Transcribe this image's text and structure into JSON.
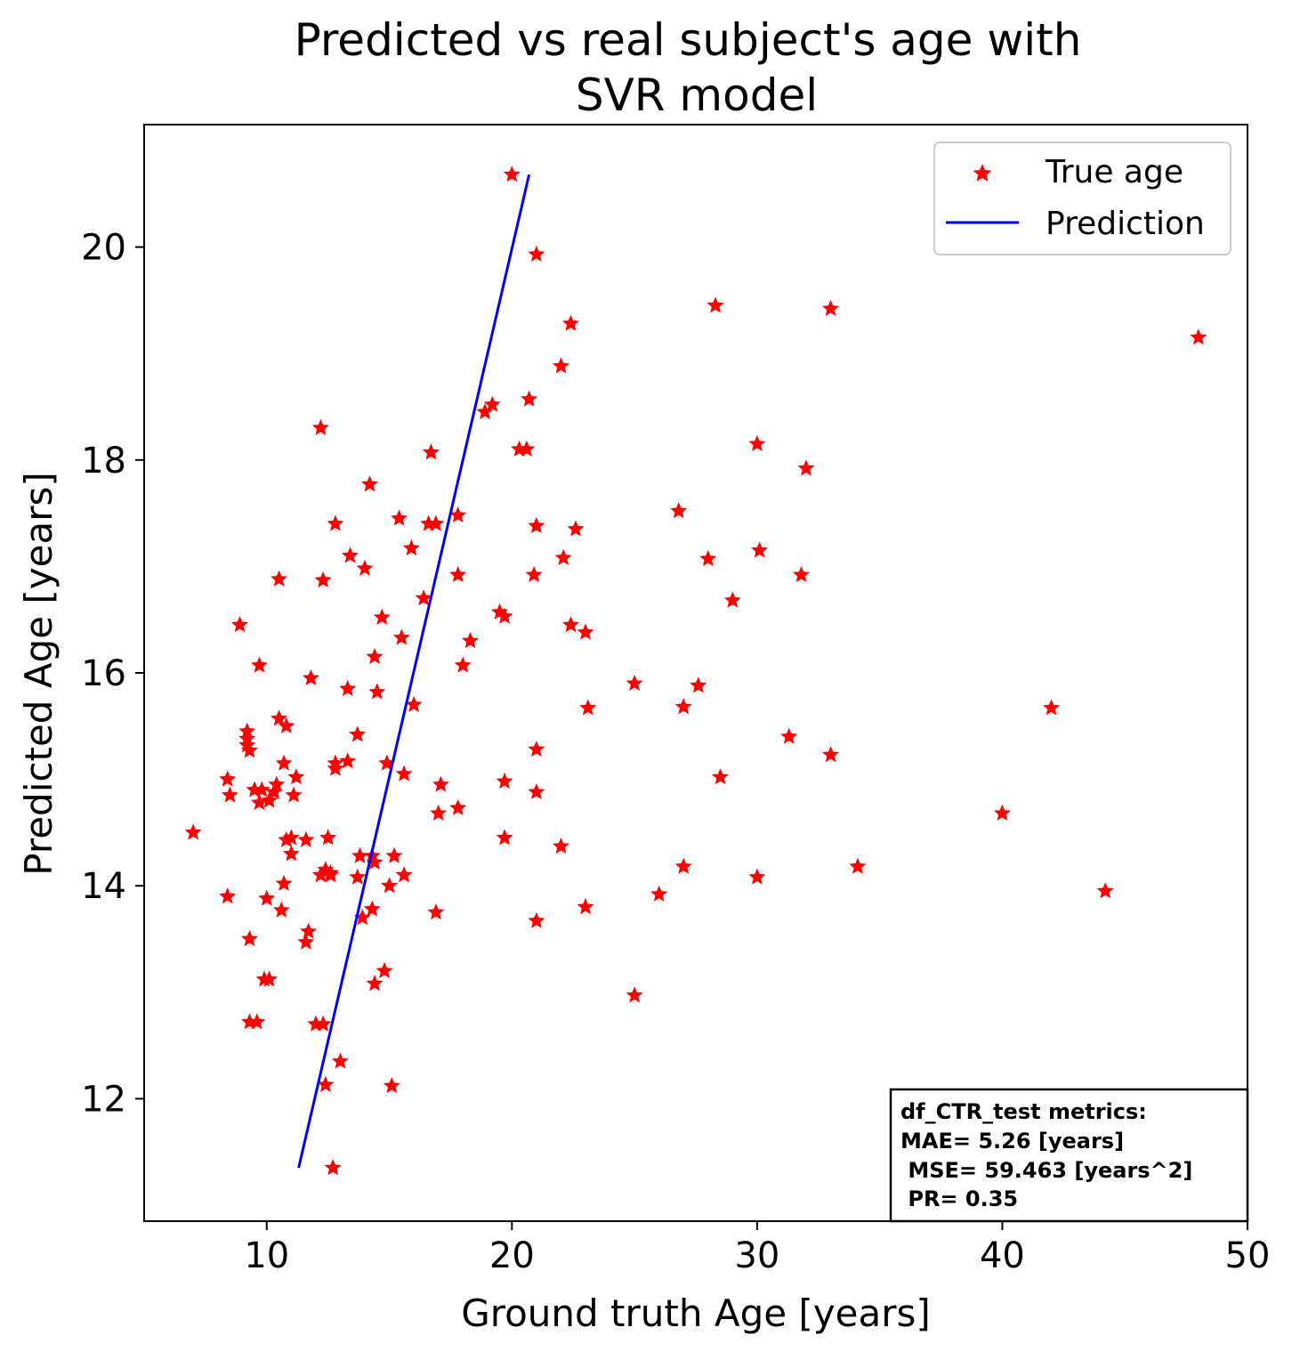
{
  "chart_data": {
    "type": "scatter",
    "title": [
      "Predicted vs real subject's age with",
      "SVR model"
    ],
    "xlabel": "Ground truth Age [years]",
    "ylabel": "Predicted Age [years]",
    "xlim": [
      5,
      50
    ],
    "ylim": [
      10.85,
      21.15
    ],
    "xticks": [
      10,
      20,
      30,
      40,
      50
    ],
    "yticks": [
      12,
      14,
      16,
      18,
      20
    ],
    "grid": false,
    "legend": {
      "placement": "top-right",
      "entries": [
        "True age",
        "Prediction"
      ]
    },
    "colors": {
      "points": "#ff0000",
      "line": "#0000ff"
    },
    "series": [
      {
        "name": "True age",
        "kind": "scatter",
        "marker": "star",
        "points": [
          [
            7.0,
            14.5
          ],
          [
            8.4,
            15.0
          ],
          [
            8.5,
            14.85
          ],
          [
            8.4,
            13.9
          ],
          [
            8.9,
            16.45
          ],
          [
            9.2,
            15.45
          ],
          [
            9.2,
            15.38
          ],
          [
            9.2,
            15.32
          ],
          [
            9.3,
            15.27
          ],
          [
            9.5,
            14.9
          ],
          [
            9.3,
            13.5
          ],
          [
            9.3,
            12.72
          ],
          [
            9.6,
            12.72
          ],
          [
            9.7,
            16.07
          ],
          [
            9.8,
            14.9
          ],
          [
            9.7,
            14.78
          ],
          [
            9.9,
            13.12
          ],
          [
            10.1,
            13.12
          ],
          [
            10.0,
            13.88
          ],
          [
            10.1,
            14.8
          ],
          [
            10.3,
            14.88
          ],
          [
            10.4,
            14.95
          ],
          [
            10.5,
            16.88
          ],
          [
            10.5,
            15.57
          ],
          [
            10.8,
            15.5
          ],
          [
            10.7,
            15.15
          ],
          [
            10.7,
            14.02
          ],
          [
            10.6,
            13.77
          ],
          [
            10.8,
            14.43
          ],
          [
            11.0,
            14.45
          ],
          [
            11.0,
            14.3
          ],
          [
            11.1,
            14.85
          ],
          [
            11.2,
            15.02
          ],
          [
            11.6,
            14.43
          ],
          [
            11.6,
            13.47
          ],
          [
            11.7,
            13.57
          ],
          [
            11.8,
            15.95
          ],
          [
            12.0,
            12.7
          ],
          [
            12.2,
            18.3
          ],
          [
            12.2,
            14.1
          ],
          [
            12.3,
            16.87
          ],
          [
            12.3,
            12.7
          ],
          [
            12.4,
            14.15
          ],
          [
            12.5,
            14.45
          ],
          [
            12.4,
            12.13
          ],
          [
            12.6,
            14.12
          ],
          [
            12.6,
            14.1
          ],
          [
            12.7,
            11.35
          ],
          [
            12.8,
            17.4
          ],
          [
            12.8,
            15.15
          ],
          [
            12.8,
            15.1
          ],
          [
            13.0,
            12.35
          ],
          [
            13.3,
            15.17
          ],
          [
            13.3,
            15.85
          ],
          [
            13.4,
            17.1
          ],
          [
            13.7,
            15.42
          ],
          [
            13.7,
            14.08
          ],
          [
            13.9,
            13.7
          ],
          [
            13.8,
            14.28
          ],
          [
            14.0,
            16.98
          ],
          [
            14.2,
            17.77
          ],
          [
            14.3,
            13.78
          ],
          [
            14.3,
            14.28
          ],
          [
            14.4,
            14.22
          ],
          [
            14.4,
            16.15
          ],
          [
            14.5,
            15.82
          ],
          [
            14.4,
            13.08
          ],
          [
            14.7,
            16.52
          ],
          [
            14.8,
            13.2
          ],
          [
            14.9,
            15.15
          ],
          [
            15.0,
            14.0
          ],
          [
            15.1,
            12.12
          ],
          [
            15.2,
            14.28
          ],
          [
            15.4,
            17.45
          ],
          [
            15.5,
            16.33
          ],
          [
            15.6,
            14.1
          ],
          [
            15.6,
            15.05
          ],
          [
            15.9,
            17.17
          ],
          [
            16.0,
            15.7
          ],
          [
            16.4,
            16.7
          ],
          [
            16.6,
            17.4
          ],
          [
            16.9,
            17.4
          ],
          [
            16.7,
            18.07
          ],
          [
            16.9,
            13.75
          ],
          [
            17.0,
            14.68
          ],
          [
            17.1,
            14.95
          ],
          [
            17.8,
            17.48
          ],
          [
            17.8,
            16.92
          ],
          [
            17.8,
            14.73
          ],
          [
            18.0,
            16.07
          ],
          [
            18.3,
            16.3
          ],
          [
            18.9,
            18.45
          ],
          [
            19.2,
            18.52
          ],
          [
            19.5,
            16.57
          ],
          [
            19.7,
            16.53
          ],
          [
            19.7,
            14.98
          ],
          [
            19.7,
            14.45
          ],
          [
            20.0,
            20.68
          ],
          [
            20.3,
            18.1
          ],
          [
            20.6,
            18.1
          ],
          [
            20.7,
            18.57
          ],
          [
            20.9,
            16.92
          ],
          [
            21.0,
            19.93
          ],
          [
            21.0,
            17.38
          ],
          [
            21.0,
            15.28
          ],
          [
            21.0,
            14.88
          ],
          [
            21.0,
            13.67
          ],
          [
            22.0,
            18.88
          ],
          [
            22.1,
            17.08
          ],
          [
            22.0,
            14.37
          ],
          [
            22.4,
            19.28
          ],
          [
            22.4,
            16.45
          ],
          [
            22.6,
            17.35
          ],
          [
            23.0,
            16.38
          ],
          [
            23.1,
            15.67
          ],
          [
            23.0,
            13.8
          ],
          [
            25.0,
            15.9
          ],
          [
            25.0,
            12.97
          ],
          [
            26.0,
            13.92
          ],
          [
            26.8,
            17.52
          ],
          [
            27.0,
            15.68
          ],
          [
            27.0,
            14.18
          ],
          [
            27.6,
            15.88
          ],
          [
            28.0,
            17.07
          ],
          [
            28.3,
            19.45
          ],
          [
            28.5,
            15.02
          ],
          [
            29.0,
            16.68
          ],
          [
            30.0,
            18.15
          ],
          [
            30.1,
            17.15
          ],
          [
            30.0,
            14.08
          ],
          [
            31.3,
            15.4
          ],
          [
            31.8,
            16.92
          ],
          [
            32.0,
            17.92
          ],
          [
            33.0,
            19.42
          ],
          [
            33.0,
            15.23
          ],
          [
            34.1,
            14.18
          ],
          [
            40.0,
            14.68
          ],
          [
            42.0,
            15.67
          ],
          [
            44.2,
            13.95
          ],
          [
            48.0,
            19.15
          ]
        ]
      },
      {
        "name": "Prediction",
        "kind": "line",
        "points": [
          [
            11.3,
            11.35
          ],
          [
            20.7,
            20.68
          ]
        ]
      }
    ],
    "annotation": {
      "placement": "bottom-right",
      "lines": [
        "df_CTR_test metrics:",
        "MAE= 5.26 [years]",
        " MSE= 59.463 [years^2]",
        " PR= 0.35"
      ]
    }
  }
}
